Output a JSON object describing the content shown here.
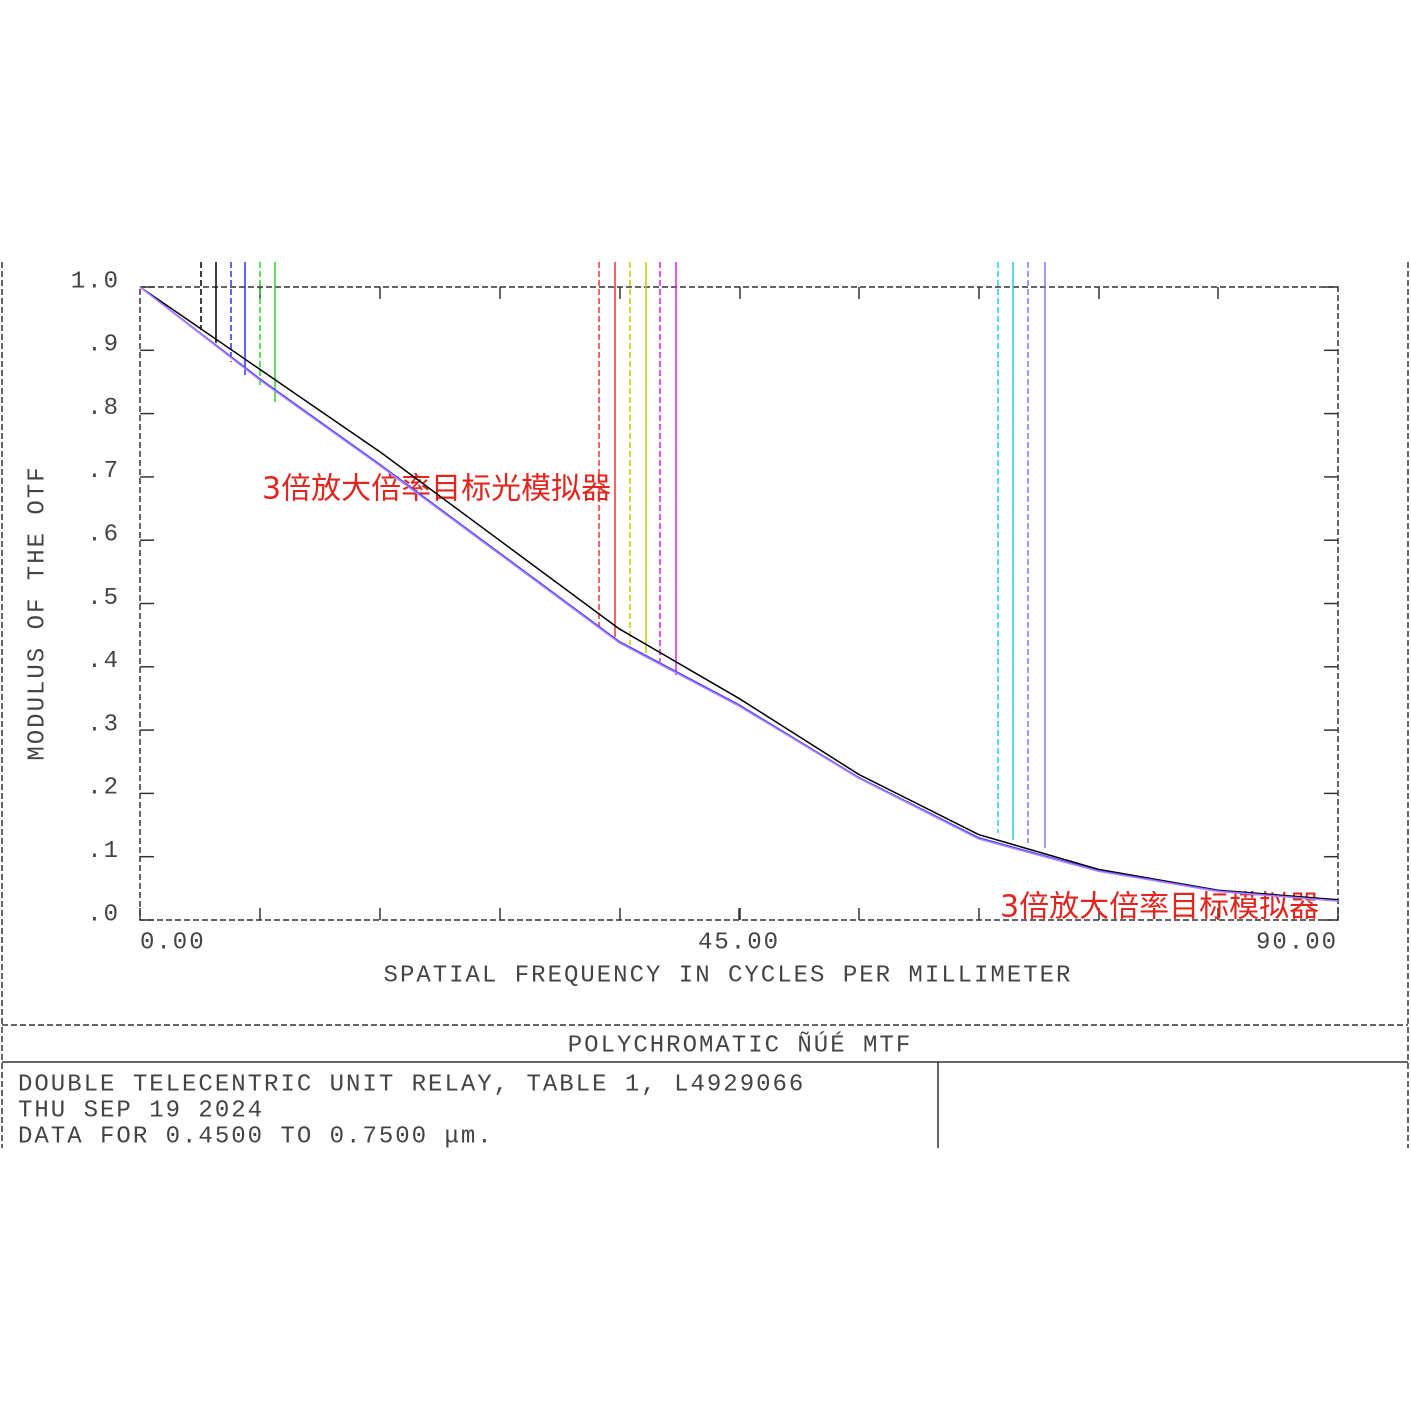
{
  "chart_data": {
    "type": "line",
    "xlabel": "SPATIAL FREQUENCY IN CYCLES PER MILLIMETER",
    "ylabel": "MODULUS OF THE OTF",
    "xlim": [
      0,
      90
    ],
    "ylim": [
      0,
      1.0
    ],
    "xticks": [
      {
        "value": 0,
        "label": "0.00"
      },
      {
        "value": 45,
        "label": "45.00"
      },
      {
        "value": 90,
        "label": "90.00"
      }
    ],
    "yticks": [
      {
        "value": 0,
        "label": ".0"
      },
      {
        "value": 0.1,
        "label": ".1"
      },
      {
        "value": 0.2,
        "label": ".2"
      },
      {
        "value": 0.3,
        "label": ".3"
      },
      {
        "value": 0.4,
        "label": ".4"
      },
      {
        "value": 0.5,
        "label": ".5"
      },
      {
        "value": 0.6,
        "label": ".6"
      },
      {
        "value": 0.7,
        "label": ".7"
      },
      {
        "value": 0.8,
        "label": ".8"
      },
      {
        "value": 0.9,
        "label": ".9"
      },
      {
        "value": 1.0,
        "label": "1.0"
      }
    ],
    "x": [
      0,
      9,
      18,
      27,
      36,
      45,
      54,
      63,
      72,
      81,
      90
    ],
    "series": [
      {
        "color": "#000000",
        "values": [
          1.0,
          0.87,
          0.74,
          0.6,
          0.46,
          0.35,
          0.23,
          0.135,
          0.08,
          0.047,
          0.032
        ]
      },
      {
        "color": "#4040ff",
        "values": [
          1.0,
          0.855,
          0.72,
          0.58,
          0.44,
          0.34,
          0.225,
          0.13,
          0.078,
          0.046,
          0.03
        ]
      },
      {
        "color": "#b080ff",
        "values": [
          1.0,
          0.853,
          0.718,
          0.578,
          0.438,
          0.338,
          0.224,
          0.128,
          0.077,
          0.045,
          0.03
        ]
      }
    ],
    "annotations": [
      "3倍放大倍率目标光模拟器",
      "3倍放大倍率目标模拟器"
    ]
  },
  "footer": {
    "title": "POLYCHROMATIC ÑÚÉ  MTF",
    "lines": [
      "DOUBLE TELECENTRIC UNIT RELAY, TABLE 1, L4929066",
      "THU SEP 19 2024",
      "DATA FOR 0.4500 TO 0.7500 μm."
    ]
  }
}
